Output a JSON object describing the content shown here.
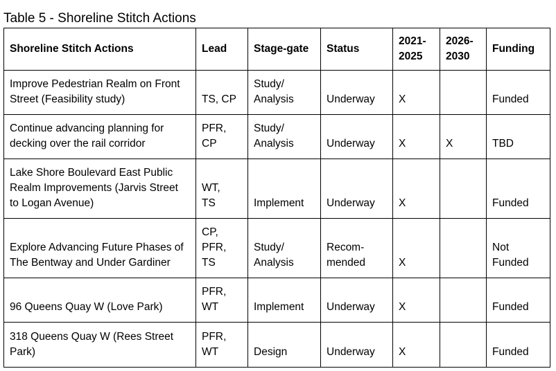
{
  "title": "Table 5 - Shoreline Stitch Actions",
  "headers": [
    "Shoreline Stitch Actions",
    "Lead",
    "Stage-gate",
    "Status",
    "2021-\n2025",
    "2026-\n2030",
    "Funding"
  ],
  "rows": [
    [
      "Improve Pedestrian Realm on Front Street (Feasibility study)",
      "TS, CP",
      "Study/\nAnalysis",
      "Underway",
      "X",
      "",
      "Funded"
    ],
    [
      "Continue advancing planning for decking over the rail corridor",
      "PFR,\nCP",
      "Study/\nAnalysis",
      "Underway",
      "X",
      "X",
      " TBD"
    ],
    [
      "Lake Shore Boulevard East Public Realm Improvements (Jarvis Street to Logan Avenue)",
      "WT,\nTS",
      "Implement",
      "Underway",
      "X",
      "",
      "Funded"
    ],
    [
      "Explore Advancing Future Phases of The Bentway and Under Gardiner",
      "CP,\nPFR,\nTS",
      "Study/\nAnalysis",
      "Recom-\nmended",
      "X",
      "",
      "Not\nFunded"
    ],
    [
      "96 Queens Quay W (Love Park)",
      "PFR,\nWT",
      "Implement",
      "Underway",
      "X",
      "",
      "Funded"
    ],
    [
      "318 Queens Quay W (Rees Street Park)",
      "PFR,\nWT",
      "Design",
      "Underway",
      "X",
      "",
      "Funded"
    ]
  ]
}
